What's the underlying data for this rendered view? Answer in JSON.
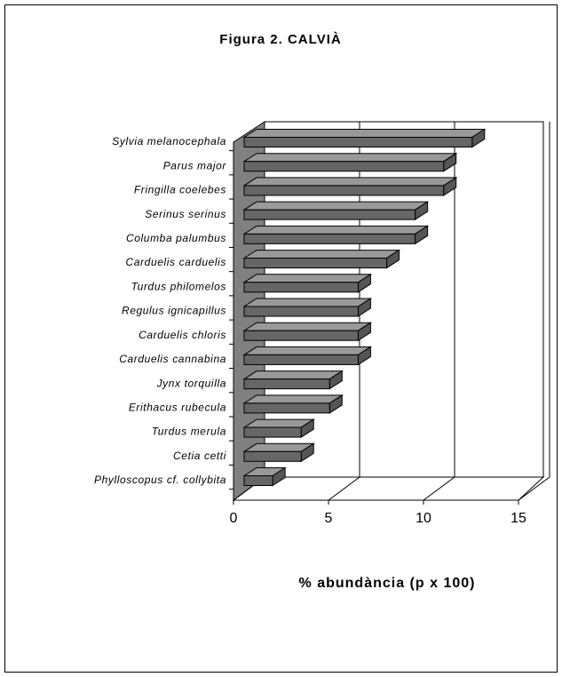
{
  "chart_data": {
    "type": "bar3d",
    "title": "Figura 2. CALVIÀ",
    "x_label": "% abundància (p x 100)",
    "categories": [
      "Sylvia melanocephala",
      "Parus major",
      "Fringilla coelebes",
      "Serinus serinus",
      "Columba palumbus",
      "Carduelis carduelis",
      "Turdus philomelos",
      "Regulus ignicapillus",
      "Carduelis chloris",
      "Carduelis cannabina",
      "Jynx torquilla",
      "Erithacus rubecula",
      "Turdus merula",
      "Cetia cetti",
      "Phylloscopus cf. collybita"
    ],
    "values": [
      12,
      10.5,
      10.5,
      9,
      9,
      7.5,
      6,
      6,
      6,
      6,
      4.5,
      4.5,
      3,
      3,
      1.5
    ],
    "color": "#666666",
    "xlim": [
      0,
      15
    ],
    "xticks": [
      0,
      5,
      10,
      15
    ],
    "grid": true
  }
}
